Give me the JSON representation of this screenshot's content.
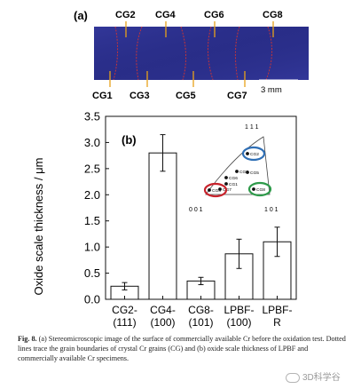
{
  "panel_a": {
    "label": "(a)",
    "top_labels": [
      "CG2",
      "CG4",
      "CG6",
      "CG8"
    ],
    "bottom_labels": [
      "CG1",
      "CG3",
      "CG5",
      "CG7"
    ],
    "scale_bar": "3 mm",
    "colors": {
      "specimen": "#2b2f8c",
      "grain_boundary": "#c4343a",
      "leader_line": "#e8a21a"
    }
  },
  "panel_b": {
    "label": "(b)",
    "inset": {
      "corners": {
        "top": "1 1 1",
        "left": "0 0 1",
        "right": "1 0 1"
      },
      "points": [
        "CG2",
        "CG3",
        "CG5",
        "CG6",
        "CG1",
        "CG7",
        "CG4",
        "CG8"
      ],
      "highlight_colors": {
        "CG2": "#2f6fb5",
        "CG4": "#c8232c",
        "CG8": "#2e9a4a"
      }
    }
  },
  "chart_data": {
    "type": "bar",
    "categories": [
      "CG2-\n(111)",
      "CG4-\n(100)",
      "CG8-\n(101)",
      "LPBF-\n(100)",
      "LPBF-\nR"
    ],
    "values": [
      0.25,
      2.8,
      0.35,
      0.87,
      1.1
    ],
    "errors": [
      0.07,
      0.35,
      0.07,
      0.28,
      0.28
    ],
    "title": "",
    "xlabel": "",
    "ylabel": "Oxide scale thickness / μm",
    "ylim": [
      0,
      3.5
    ],
    "yticks": [
      "0.0",
      "0.5",
      "1.0",
      "1.5",
      "2.0",
      "2.5",
      "3.0",
      "3.5"
    ],
    "grid": false
  },
  "caption": {
    "fig_label": "Fig. 8.",
    "text": "(a) Stereomicroscopic image of the surface of commercially available Cr before the oxidation test. Dotted lines trace the grain boundaries of crystal Cr grains (CG) and (b) oxide scale thickness of LPBF and commercially available Cr specimens."
  },
  "watermark": "3D科学谷"
}
